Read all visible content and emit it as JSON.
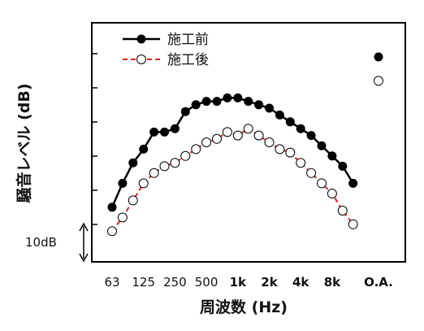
{
  "chart_data": {
    "type": "line",
    "xlabel": "周波数 (Hz)",
    "ylabel": "騒音レベル (dB)",
    "scale_bar": "10dB",
    "x_tick_labels": [
      {
        "label": "63",
        "index": 0,
        "bold": false
      },
      {
        "label": "125",
        "index": 3,
        "bold": false
      },
      {
        "label": "250",
        "index": 6,
        "bold": false
      },
      {
        "label": "500",
        "index": 9,
        "bold": false
      },
      {
        "label": "1k",
        "index": 12,
        "bold": true
      },
      {
        "label": "2k",
        "index": 15,
        "bold": true
      },
      {
        "label": "4k",
        "index": 18,
        "bold": true
      },
      {
        "label": "8k",
        "index": 21,
        "bold": true
      },
      {
        "label": "O.A.",
        "index": 23.5,
        "bold": true
      }
    ],
    "series": [
      {
        "name": "施工前",
        "color": "#000000",
        "marker": "filled-circle",
        "line_style": "solid",
        "values": [
          6,
          13,
          19,
          23,
          28,
          28,
          29,
          34,
          36,
          37,
          37,
          38,
          38,
          37,
          36,
          35,
          33,
          31,
          29,
          27,
          24,
          21,
          18,
          13
        ],
        "overall": 50
      },
      {
        "name": "施工後",
        "color": "#e0211d",
        "marker": "open-circle",
        "line_style": "dashed",
        "values": [
          -1,
          3,
          8,
          13,
          16,
          18,
          19,
          21,
          23,
          25,
          26,
          28,
          27,
          29,
          27,
          25,
          23,
          22,
          19,
          16,
          13,
          10,
          5,
          1
        ],
        "overall": 43
      }
    ],
    "grid": false,
    "legend_placement": "top-left"
  }
}
